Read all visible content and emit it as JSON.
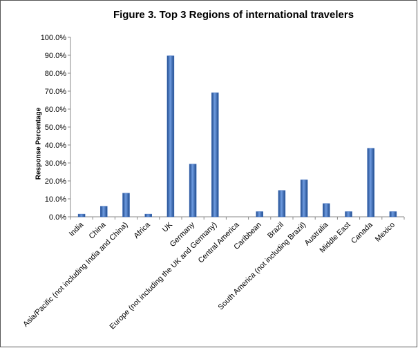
{
  "chart_data": {
    "type": "bar",
    "title": "Figure 3. Top 3 Regions of international travelers",
    "y_label": "Response Percentage",
    "categories": [
      "India",
      "China",
      "Asia/Pacific (not including India and China)",
      "Africa",
      "UK",
      "Germany",
      "Europe (not including the UK and Germany)",
      "Central America",
      "Caribbean",
      "Brazil",
      "South America (not including Brazil)",
      "Australia",
      "Middle East",
      "Canada",
      "Mexico"
    ],
    "values": [
      1.5,
      5.9,
      13.2,
      1.5,
      89.7,
      29.4,
      69.1,
      0,
      2.9,
      14.7,
      20.6,
      7.4,
      2.9,
      38.2,
      2.9
    ],
    "color": "#3f6fbf",
    "ylim": [
      0,
      100
    ],
    "yticks": [
      {
        "value": 0,
        "label": "0.0%"
      },
      {
        "value": 10,
        "label": "10.0%"
      },
      {
        "value": 20,
        "label": "20.0%"
      },
      {
        "value": 30,
        "label": "30.0%"
      },
      {
        "value": 40,
        "label": "40.0%"
      },
      {
        "value": 50,
        "label": "50.0%"
      },
      {
        "value": 60,
        "label": "60.0%"
      },
      {
        "value": 70,
        "label": "70.0%"
      },
      {
        "value": 80,
        "label": "80.0%"
      },
      {
        "value": 90,
        "label": "90.0%"
      },
      {
        "value": 100,
        "label": "100.0%"
      }
    ],
    "grid": false
  }
}
